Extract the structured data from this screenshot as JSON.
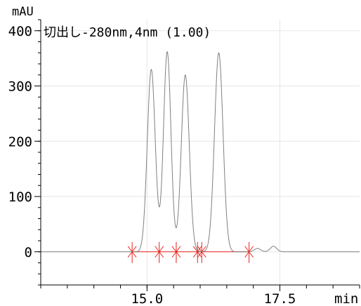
{
  "chart_data": {
    "type": "line",
    "title": "切出し-280nm,4nm (1.00)",
    "ylabel": "mAU",
    "xlabel": "min",
    "xlim": [
      13.0,
      19.0
    ],
    "ylim": [
      -60,
      420
    ],
    "xticks": [
      {
        "value": 15.0,
        "label": "15.0"
      },
      {
        "value": 17.5,
        "label": "17.5"
      }
    ],
    "xtick_minor_step": 0.5,
    "yticks": [
      {
        "value": 0,
        "label": "0"
      },
      {
        "value": 100,
        "label": "100"
      },
      {
        "value": 200,
        "label": "200"
      },
      {
        "value": 300,
        "label": "300"
      },
      {
        "value": 400,
        "label": "400"
      }
    ],
    "ytick_minor_step": 20,
    "grid": true,
    "series": [
      {
        "color": "#808080",
        "peaks": [
          {
            "rt": 15.08,
            "height": 330,
            "width": 0.075
          },
          {
            "rt": 15.38,
            "height": 362,
            "width": 0.07
          },
          {
            "rt": 15.72,
            "height": 320,
            "width": 0.075
          },
          {
            "rt": 16.35,
            "height": 360,
            "width": 0.08
          },
          {
            "rt": 17.08,
            "height": 6,
            "width": 0.06
          },
          {
            "rt": 17.38,
            "height": 10,
            "width": 0.06
          }
        ]
      }
    ],
    "integration": {
      "color": "#e8201a",
      "baseline": [
        14.72,
        16.92
      ],
      "markers": [
        14.72,
        15.23,
        15.55,
        15.95,
        16.03,
        16.92
      ]
    }
  }
}
